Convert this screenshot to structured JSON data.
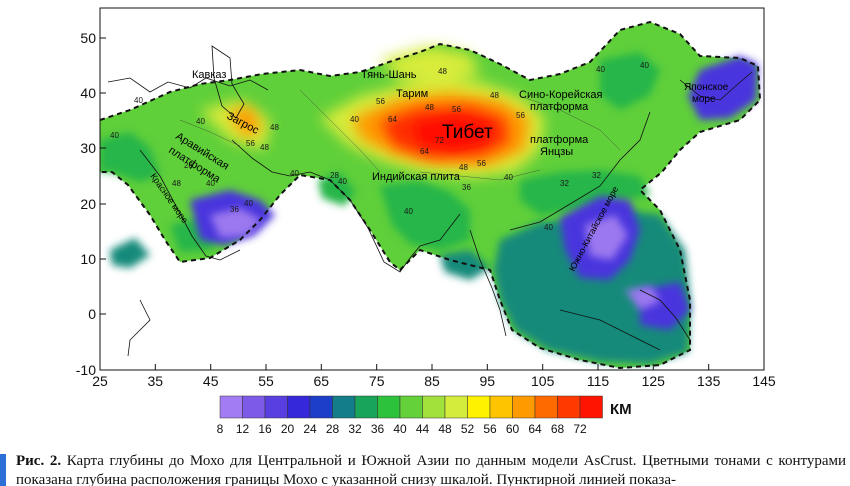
{
  "figure": {
    "caption_label": "Рис. 2.",
    "caption_text": "Карта глубины до Мохо для Центральной и Южной Азии по данным модели AsCrust. Цветными тонами с контурами показана глубина расположения границы Мохо с указанной снизу шкалой. Пунктирной линией показа-"
  },
  "axes": {
    "x_ticks": [
      "25",
      "35",
      "45",
      "55",
      "65",
      "75",
      "85",
      "95",
      "105",
      "115",
      "125",
      "135",
      "145"
    ],
    "y_ticks": [
      "50",
      "40",
      "30",
      "20",
      "10",
      "0",
      "-10"
    ]
  },
  "regions": {
    "caucasus": "Кавказ",
    "tien_shan": "Тянь-Шань",
    "tarim": "Тарим",
    "zagros": "Загрос",
    "arabian": "Аравийская платформа",
    "arabian_line1": "Аравийская",
    "arabian_line2": "платформа",
    "red_sea": "Красное море",
    "tibet": "Тибет",
    "sino_korean_1": "Сино-Корейская",
    "sino_korean_2": "платформа",
    "yangtze_1": "платформа",
    "yangtze_2": "Янцзы",
    "indian_plate": "Индийская плита",
    "japan_sea_1": "Японское",
    "japan_sea_2": "море",
    "south_china_sea": "Южно-Китайское море"
  },
  "legend": {
    "unit": "КМ",
    "labels": [
      "8",
      "12",
      "16",
      "20",
      "24",
      "28",
      "32",
      "36",
      "40",
      "44",
      "48",
      "52",
      "56",
      "60",
      "64",
      "68",
      "72"
    ],
    "colors": [
      "#a27cf2",
      "#7e5ae8",
      "#5a3fe0",
      "#3528db",
      "#1d3ec9",
      "#137d8a",
      "#18a55a",
      "#2cc23c",
      "#64d03a",
      "#a2e03c",
      "#d4ec3c",
      "#fff200",
      "#ffc400",
      "#ff9a00",
      "#ff6a00",
      "#ff3a00",
      "#ff1400"
    ]
  },
  "contour_labels": [
    "40",
    "40",
    "40",
    "48",
    "48",
    "56",
    "64",
    "72",
    "56",
    "48",
    "64",
    "56",
    "40",
    "48",
    "56",
    "40",
    "48",
    "32",
    "40",
    "40",
    "36",
    "40",
    "40",
    "28",
    "40",
    "40",
    "56",
    "48",
    "48",
    "40",
    "36",
    "32",
    "40",
    "28"
  ]
}
